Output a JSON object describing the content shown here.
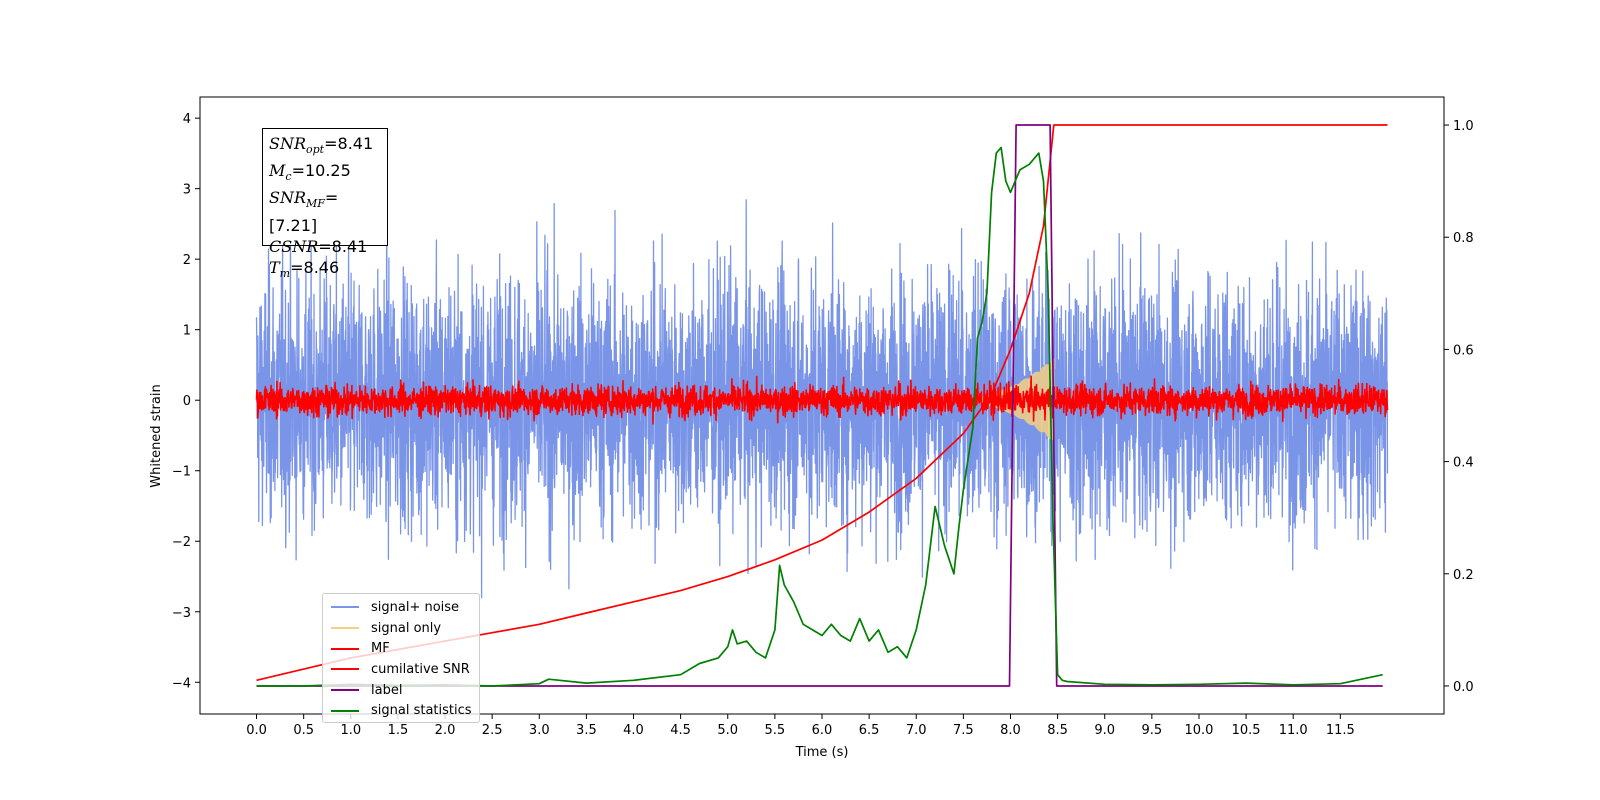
{
  "chart_data": {
    "type": "line",
    "title": "",
    "xlabel": "Time (s)",
    "ylabel": "Whitened strain",
    "xlim": [
      -0.6,
      12.6
    ],
    "ylim": [
      -4.45,
      4.3
    ],
    "y2lim": [
      -0.05,
      1.05
    ],
    "x_ticks": [
      "0.0",
      "0.5",
      "1.0",
      "1.5",
      "2.0",
      "2.5",
      "3.0",
      "3.5",
      "4.0",
      "4.5",
      "5.0",
      "5.5",
      "6.0",
      "6.5",
      "7.0",
      "7.5",
      "8.0",
      "8.5",
      "9.0",
      "9.5",
      "10.0",
      "10.5",
      "11.0",
      "11.5"
    ],
    "y_ticks": [
      "4",
      "3",
      "2",
      "1",
      "0",
      "−1",
      "−2",
      "−3",
      "−4"
    ],
    "y2_ticks": [
      "1.0",
      "0.8",
      "0.6",
      "0.4",
      "0.2",
      "0.0"
    ],
    "grid": false,
    "legend_position": "lower-left",
    "annotation": {
      "snr_opt": "=8.41",
      "mc": "=10.25",
      "snr_mf": "=[7.21]",
      "csnr": "=8.41",
      "tm": "=8.46"
    },
    "series": [
      {
        "name": "signal+ noise",
        "color": "#7a95e8",
        "axis": "left",
        "style": "noise",
        "x_range": [
          0.0,
          12.0
        ],
        "amplitude": 1.5
      },
      {
        "name": "signal only",
        "color": "#f5cf85",
        "axis": "left",
        "style": "chirp",
        "x_range": [
          7.4,
          8.46
        ],
        "peak_amplitude": 0.6
      },
      {
        "name": "MF",
        "color": "#ff0000",
        "axis": "left",
        "style": "noise",
        "x_range": [
          0.0,
          12.0
        ],
        "amplitude": 0.18
      },
      {
        "name": "cumilative SNR",
        "color": "#ff0000",
        "axis": "right",
        "x": [
          0.0,
          0.5,
          1.0,
          1.5,
          2.0,
          2.5,
          3.0,
          3.5,
          4.0,
          4.5,
          5.0,
          5.5,
          6.0,
          6.5,
          7.0,
          7.5,
          7.8,
          8.0,
          8.2,
          8.35,
          8.46,
          12.0
        ],
        "y": [
          0.01,
          0.03,
          0.05,
          0.065,
          0.08,
          0.095,
          0.11,
          0.13,
          0.15,
          0.17,
          0.195,
          0.225,
          0.26,
          0.31,
          0.37,
          0.45,
          0.52,
          0.6,
          0.7,
          0.82,
          1.0,
          1.0
        ]
      },
      {
        "name": "label",
        "color": "#800080",
        "axis": "right",
        "x": [
          0.0,
          7.99,
          8.06,
          8.42,
          8.49,
          11.95
        ],
        "y": [
          0.0,
          0.0,
          1.0,
          1.0,
          0.0,
          0.0
        ]
      },
      {
        "name": "signal statistics",
        "color": "#008000",
        "axis": "right",
        "x": [
          0.0,
          0.5,
          1.0,
          1.5,
          2.0,
          2.5,
          3.0,
          3.1,
          3.5,
          4.0,
          4.5,
          4.7,
          4.9,
          5.0,
          5.05,
          5.1,
          5.2,
          5.3,
          5.4,
          5.5,
          5.55,
          5.6,
          5.7,
          5.8,
          5.9,
          6.0,
          6.1,
          6.2,
          6.3,
          6.4,
          6.5,
          6.6,
          6.7,
          6.8,
          6.9,
          7.0,
          7.1,
          7.2,
          7.3,
          7.4,
          7.45,
          7.5,
          7.6,
          7.65,
          7.7,
          7.75,
          7.8,
          7.85,
          7.9,
          7.95,
          8.0,
          8.05,
          8.1,
          8.2,
          8.3,
          8.35,
          8.4,
          8.45,
          8.5,
          8.55,
          8.6,
          9.0,
          9.5,
          10.0,
          10.5,
          11.0,
          11.5,
          11.95
        ],
        "y": [
          0.0,
          0.0,
          0.003,
          0.001,
          0.002,
          0.0,
          0.004,
          0.012,
          0.005,
          0.01,
          0.02,
          0.04,
          0.05,
          0.07,
          0.1,
          0.075,
          0.08,
          0.06,
          0.05,
          0.1,
          0.215,
          0.18,
          0.15,
          0.11,
          0.1,
          0.09,
          0.11,
          0.09,
          0.08,
          0.12,
          0.08,
          0.1,
          0.06,
          0.07,
          0.05,
          0.1,
          0.18,
          0.32,
          0.25,
          0.2,
          0.28,
          0.35,
          0.46,
          0.62,
          0.65,
          0.7,
          0.88,
          0.95,
          0.96,
          0.9,
          0.88,
          0.9,
          0.92,
          0.93,
          0.95,
          0.9,
          0.7,
          0.3,
          0.02,
          0.01,
          0.008,
          0.003,
          0.002,
          0.003,
          0.005,
          0.002,
          0.004,
          0.02
        ]
      }
    ]
  }
}
